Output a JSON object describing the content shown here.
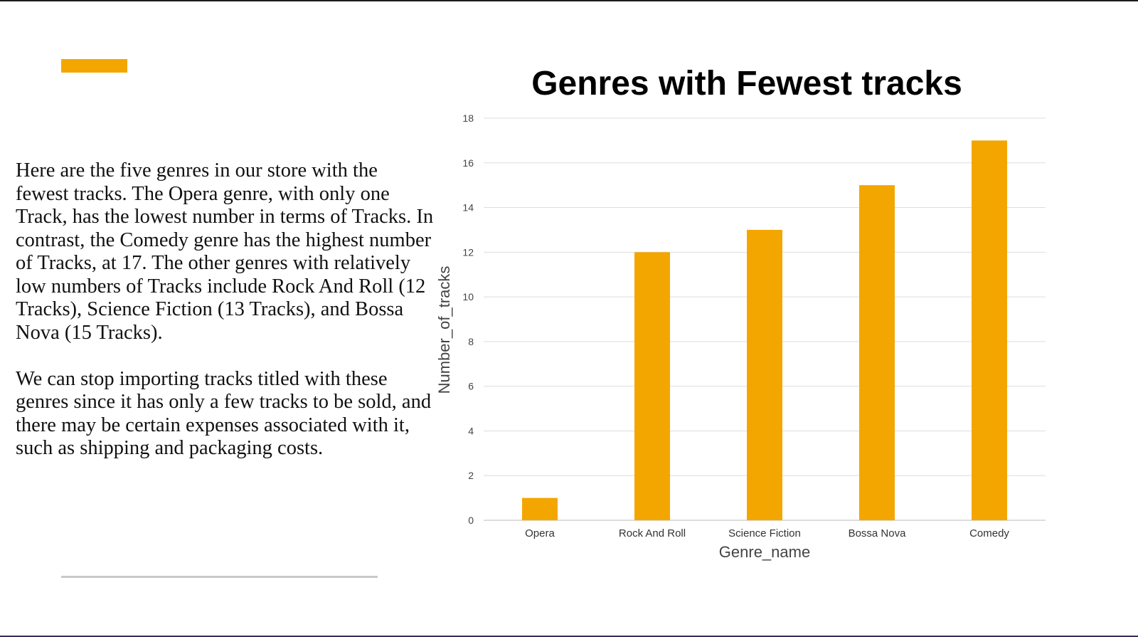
{
  "slide": {
    "accent_color": "#F4A600",
    "paragraphs": [
      "Here are the five genres in our store with the fewest tracks. The Opera genre, with only one Track, has the lowest number in terms of Tracks. In contrast, the Comedy genre has the highest number of Tracks, at 17. The other genres with relatively low numbers of Tracks include Rock And Roll (12 Tracks), Science Fiction (13 Tracks), and Bossa Nova (15 Tracks).",
      "We can stop importing tracks titled with these genres since it has only a few tracks to be sold, and there may be certain expenses associated with it, such as shipping and packaging costs."
    ]
  },
  "chart_data": {
    "type": "bar",
    "title": "Genres with Fewest tracks",
    "xlabel": "Genre_name",
    "ylabel": "Number_of_tracks",
    "categories": [
      "Opera",
      "Rock And Roll",
      "Science Fiction",
      "Bossa Nova",
      "Comedy"
    ],
    "values": [
      1,
      12,
      13,
      15,
      17
    ],
    "ylim": [
      0,
      18
    ],
    "yticks": [
      0,
      2,
      4,
      6,
      8,
      10,
      12,
      14,
      16,
      18
    ],
    "grid": true,
    "legend": "none",
    "bar_color": "#F4A600",
    "grid_color": "#DDDDDD"
  }
}
